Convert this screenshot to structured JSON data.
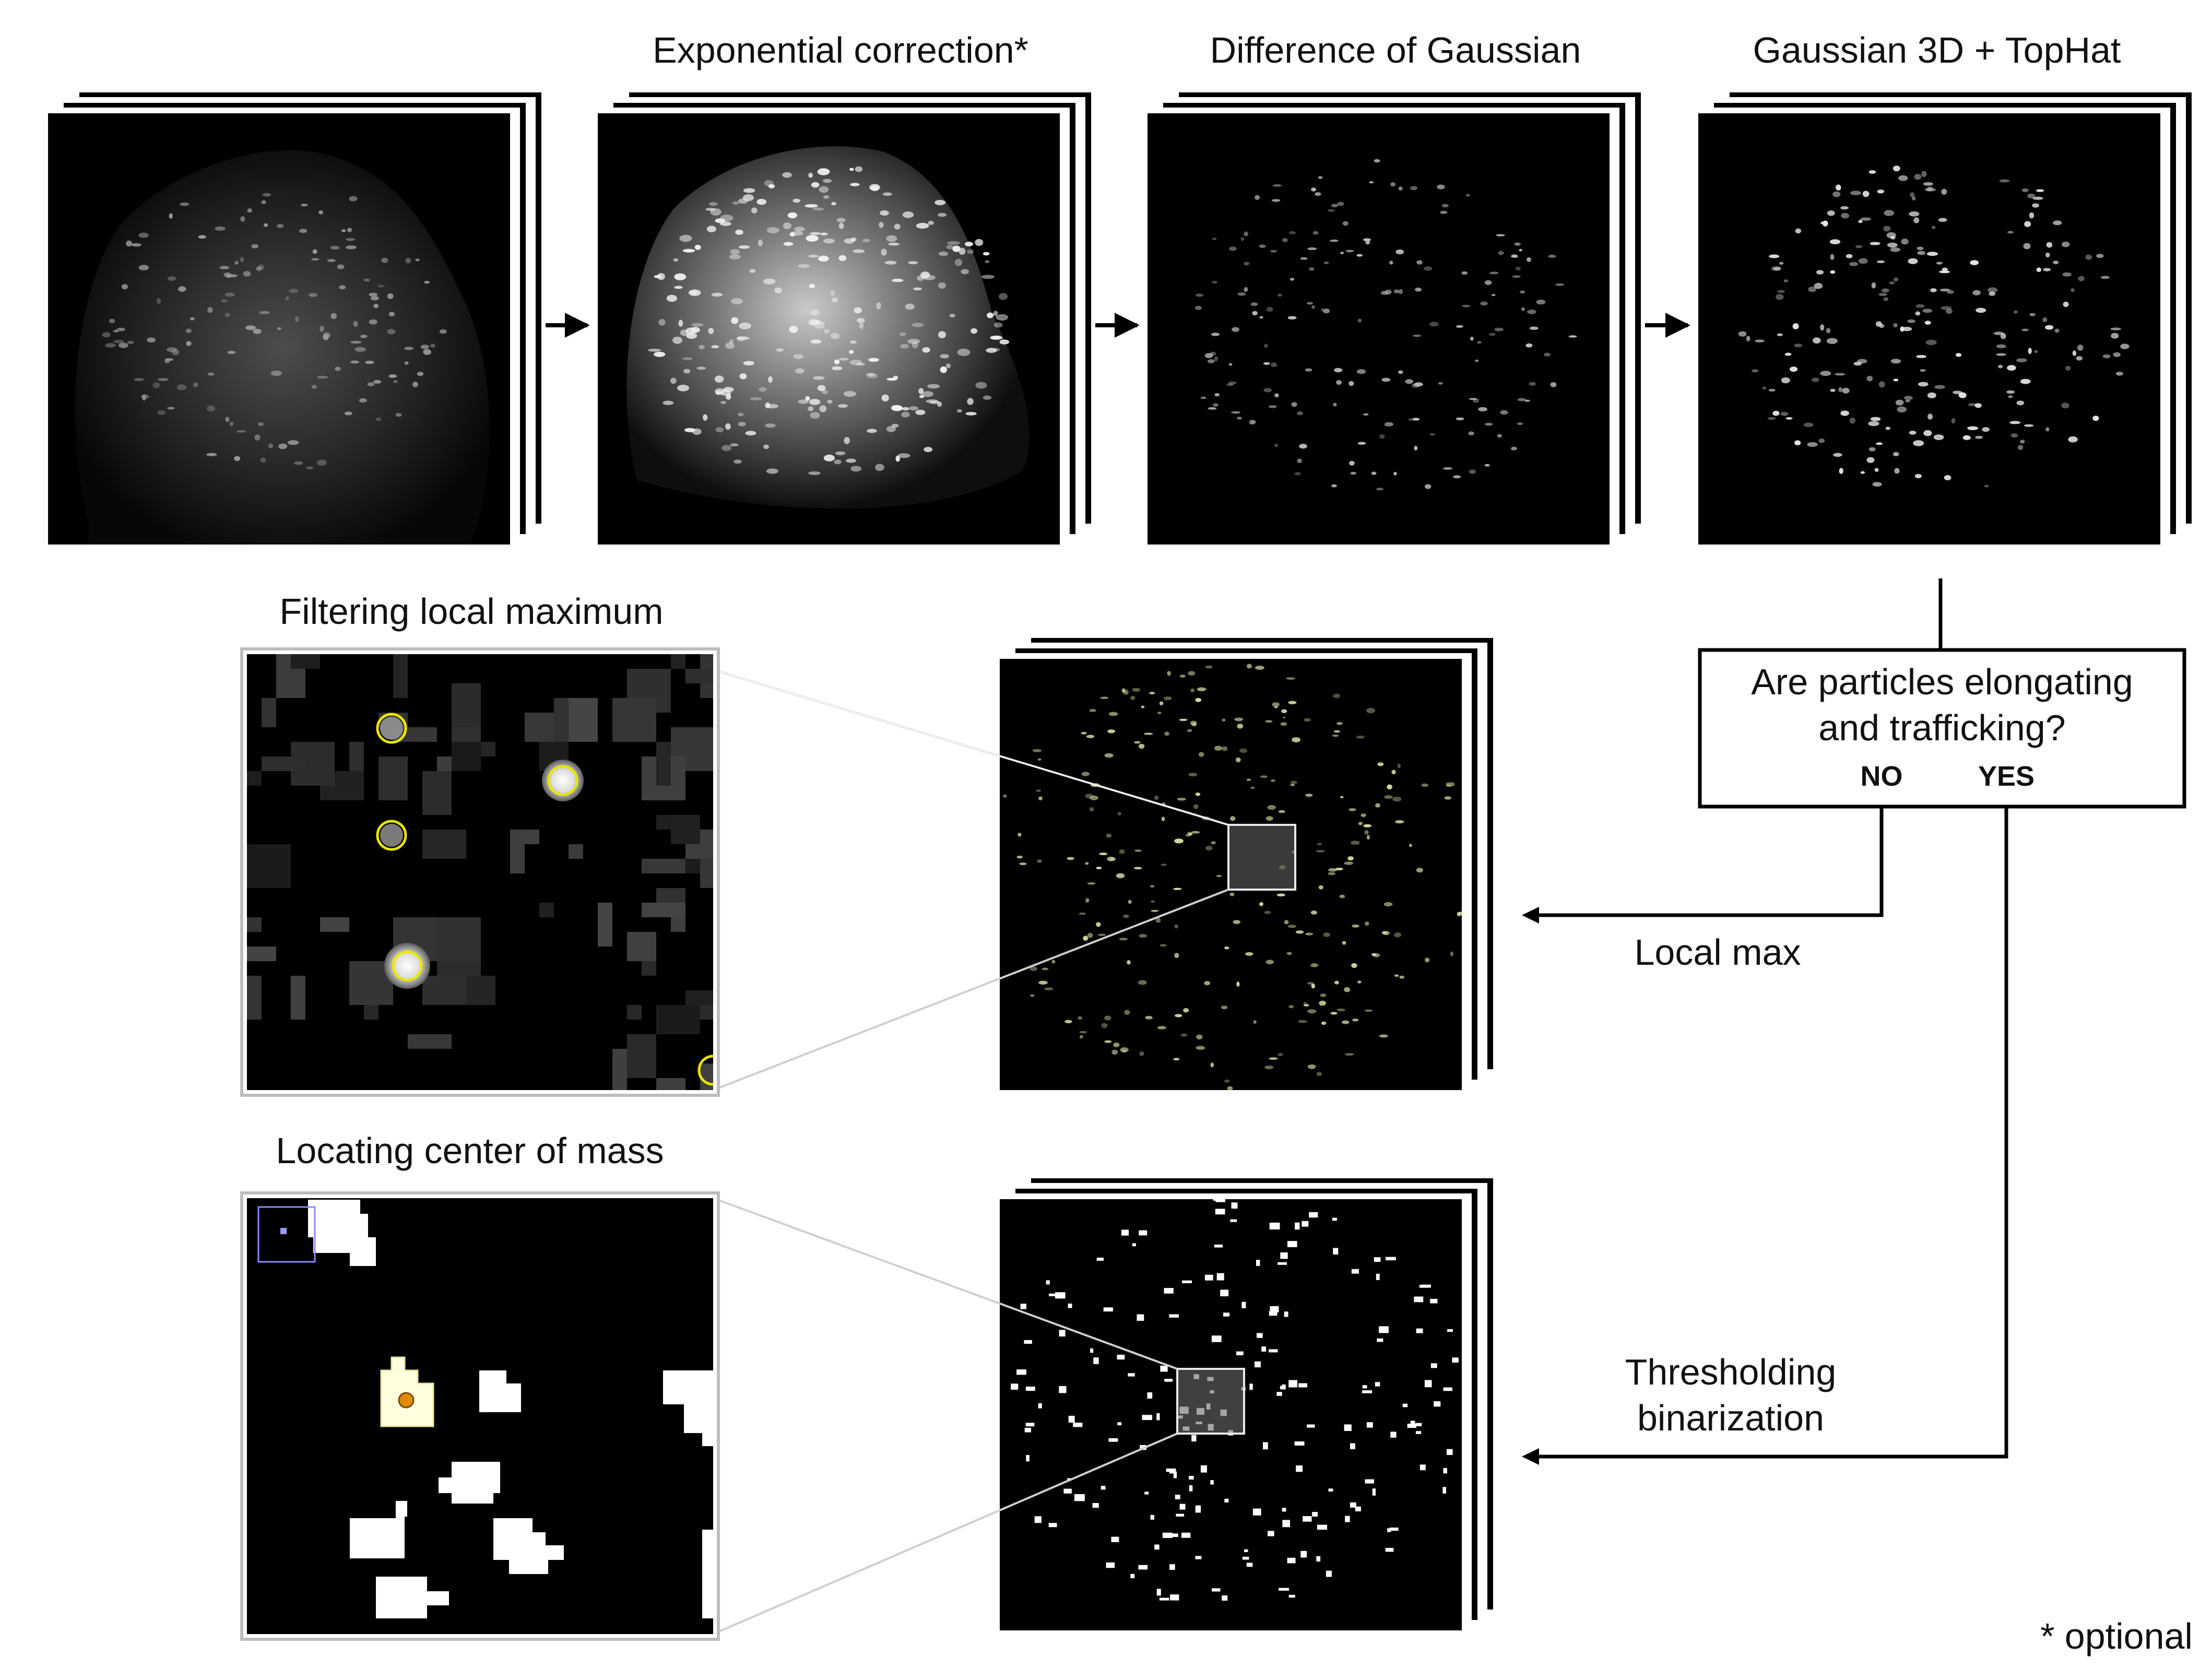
{
  "steps": {
    "exp_label": "Exponential correction*",
    "dog_label": "Difference of Gaussian",
    "g3d_label": "Gaussian 3D + TopHat"
  },
  "zoom_panels": {
    "localmax_title": "Filtering local maximum",
    "com_title": "Locating center of mass"
  },
  "decision": {
    "question_line1": "Are particles elongating",
    "question_line2": "and trafficking?",
    "no_label": "NO",
    "yes_label": "YES"
  },
  "branches": {
    "local_max": "Local max",
    "threshold_line1": "Thresholding",
    "threshold_line2": "binarization"
  },
  "footnote": "* optional",
  "colors": {
    "background": "#ffffff",
    "frame": "#000000",
    "line": "#000000",
    "zoom_border": "#c8c8c8",
    "detection_ring": "#e8e600",
    "center_of_mass": "#e08a00"
  },
  "icons": [
    "arrow-right-icon",
    "arrow-left-icon"
  ]
}
